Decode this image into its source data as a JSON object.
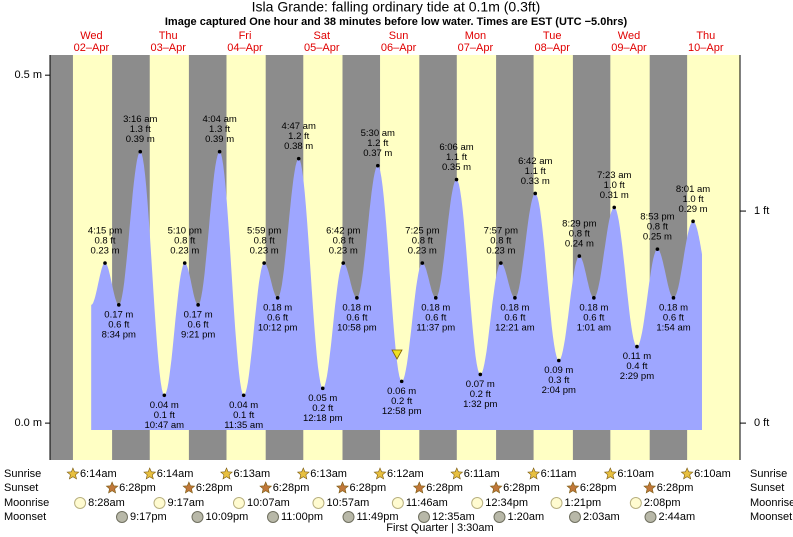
{
  "chart_data": {
    "type": "tide",
    "title": "Isla Grande: falling  ordinary tide at 0.1m (0.3ft)",
    "subtitle": "Image captured One hour and 38 minutes before low water. Times are EST (UTC −5.0hrs)",
    "ylim": [
      -0.053,
      0.529
    ],
    "yticks": [
      {
        "value": 0,
        "label": "0.0 m"
      },
      {
        "value": 0.5,
        "label": "0.5 m"
      }
    ],
    "y2lim": [
      -0.174,
      1.736
    ],
    "y2ticks": [
      {
        "value": 0,
        "label": "0 ft"
      },
      {
        "value": 1,
        "label": "1 ft"
      }
    ],
    "days": [
      {
        "name": "Wed",
        "date": "02–Apr",
        "extremes": [
          {
            "time": "4:15 pm",
            "ft": "0.8 ft",
            "m": "0.23 m",
            "height": 0.23
          },
          {
            "time": "8:34 pm",
            "ft": "0.6 ft",
            "m": "0.17 m",
            "height": 0.17
          }
        ]
      },
      {
        "name": "Thu",
        "date": "03–Apr",
        "extremes": [
          {
            "time": "3:16 am",
            "ft": "1.3 ft",
            "m": "0.39 m",
            "height": 0.39
          },
          {
            "time": "10:47 am",
            "ft": "0.1 ft",
            "m": "0.04 m",
            "height": 0.04
          },
          {
            "time": "5:10 pm",
            "ft": "0.8 ft",
            "m": "0.23 m",
            "height": 0.23
          },
          {
            "time": "9:21 pm",
            "ft": "0.6 ft",
            "m": "0.17 m",
            "height": 0.17
          }
        ]
      },
      {
        "name": "Fri",
        "date": "04–Apr",
        "extremes": [
          {
            "time": "4:04 am",
            "ft": "1.3 ft",
            "m": "0.39 m",
            "height": 0.39
          },
          {
            "time": "11:35 am",
            "ft": "0.1 ft",
            "m": "0.04 m",
            "height": 0.04
          },
          {
            "time": "5:59 pm",
            "ft": "0.8 ft",
            "m": "0.23 m",
            "height": 0.23
          },
          {
            "time": "10:12 pm",
            "ft": "0.6 ft",
            "m": "0.18 m",
            "height": 0.18
          }
        ]
      },
      {
        "name": "Sat",
        "date": "05–Apr",
        "extremes": [
          {
            "time": "4:47 am",
            "ft": "1.2 ft",
            "m": "0.38 m",
            "height": 0.38
          },
          {
            "time": "12:18 pm",
            "ft": "0.2 ft",
            "m": "0.05 m",
            "height": 0.05
          },
          {
            "time": "6:42 pm",
            "ft": "0.8 ft",
            "m": "0.23 m",
            "height": 0.23
          },
          {
            "time": "10:58 pm",
            "ft": "0.6 ft",
            "m": "0.18 m",
            "height": 0.18
          }
        ]
      },
      {
        "name": "Sun",
        "date": "06–Apr",
        "extremes": [
          {
            "time": "5:30 am",
            "ft": "1.2 ft",
            "m": "0.37 m",
            "height": 0.37
          },
          {
            "time": "12:58 pm",
            "ft": "0.2 ft",
            "m": "0.06 m",
            "height": 0.06
          },
          {
            "time": "7:25 pm",
            "ft": "0.8 ft",
            "m": "0.23 m",
            "height": 0.23
          },
          {
            "time": "11:37 pm",
            "ft": "0.6 ft",
            "m": "0.18 m",
            "height": 0.18
          }
        ]
      },
      {
        "name": "Mon",
        "date": "07–Apr",
        "extremes": [
          {
            "time": "6:06 am",
            "ft": "1.1 ft",
            "m": "0.35 m",
            "height": 0.35
          },
          {
            "time": "1:32 pm",
            "ft": "0.2 ft",
            "m": "0.07 m",
            "height": 0.07
          },
          {
            "time": "7:57 pm",
            "ft": "0.8 ft",
            "m": "0.23 m",
            "height": 0.23
          }
        ]
      },
      {
        "name": "Tue",
        "date": "08–Apr",
        "extremes": [
          {
            "time": "12:21 am",
            "ft": "0.6 ft",
            "m": "0.18 m",
            "height": 0.18
          },
          {
            "time": "6:42 am",
            "ft": "1.1 ft",
            "m": "0.33 m",
            "height": 0.33
          },
          {
            "time": "2:04 pm",
            "ft": "0.3 ft",
            "m": "0.09 m",
            "height": 0.09
          },
          {
            "time": "8:29 pm",
            "ft": "0.8 ft",
            "m": "0.24 m",
            "height": 0.24
          }
        ]
      },
      {
        "name": "Wed",
        "date": "09–Apr",
        "extremes": [
          {
            "time": "1:01 am",
            "ft": "0.6 ft",
            "m": "0.18 m",
            "height": 0.18
          },
          {
            "time": "7:23 am",
            "ft": "1.0 ft",
            "m": "0.31 m",
            "height": 0.31
          },
          {
            "time": "2:29 pm",
            "ft": "0.4 ft",
            "m": "0.11 m",
            "height": 0.11
          },
          {
            "time": "8:53 pm",
            "ft": "0.8 ft",
            "m": "0.25 m",
            "height": 0.25
          }
        ]
      },
      {
        "name": "Thu",
        "date": "10–Apr",
        "extremes": [
          {
            "time": "1:54 am",
            "ft": "0.6 ft",
            "m": "0.18 m",
            "height": 0.18
          },
          {
            "time": "8:01 am",
            "ft": "1.0 ft",
            "m": "0.29 m",
            "height": 0.29
          }
        ]
      }
    ],
    "rows": {
      "sunrise": "Sunrise",
      "sunset": "Sunset",
      "moonrise": "Moonrise",
      "moonset": "Moonset"
    },
    "sunrise": [
      "6:14am",
      "6:14am",
      "6:13am",
      "6:13am",
      "6:12am",
      "6:11am",
      "6:11am",
      "6:10am",
      "6:10am"
    ],
    "sunset": [
      "6:28pm",
      "6:28pm",
      "6:28pm",
      "6:28pm",
      "6:28pm",
      "6:28pm",
      "6:28pm",
      "6:28pm"
    ],
    "moonrise": [
      "8:28am",
      "9:17am",
      "10:07am",
      "10:57am",
      "11:46am",
      "12:34pm",
      "1:21pm",
      "2:08pm"
    ],
    "moonset": [
      "9:17pm",
      "10:09pm",
      "11:00pm",
      "11:49pm",
      "12:35am",
      "1:20am",
      "2:03am",
      "2:44am"
    ],
    "moon_phase": "First Quarter | 3:30am"
  }
}
